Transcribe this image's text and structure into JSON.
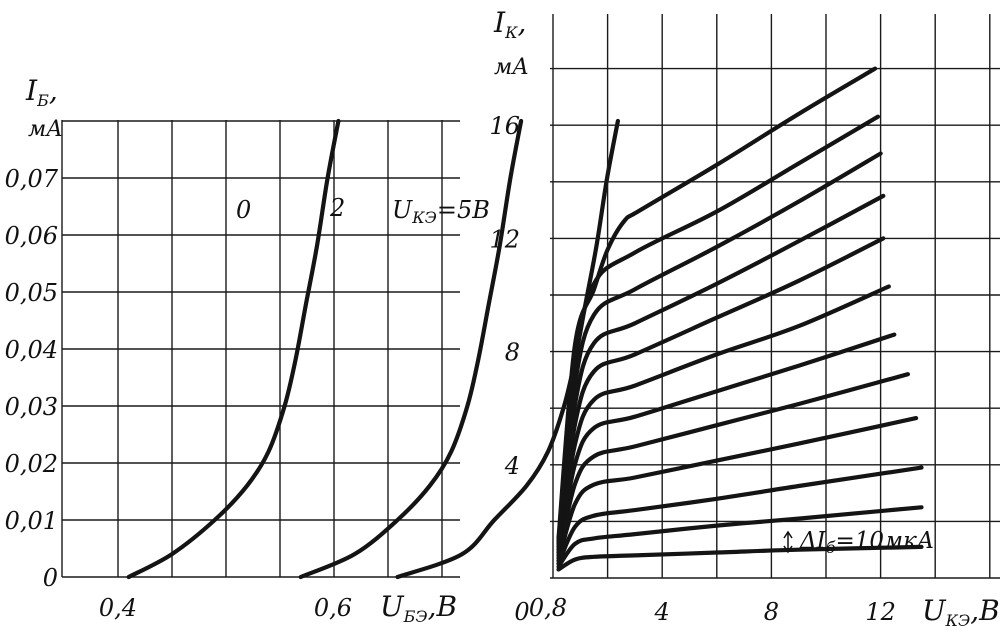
{
  "chart_data": [
    {
      "type": "line",
      "title": "",
      "ylabel_symbol": "I",
      "ylabel_sub": "Б",
      "ylabel_unit": "мА",
      "xlabel_symbol": "U",
      "xlabel_sub": "БЭ",
      "xlabel_unit": "В",
      "xlim": [
        0.3,
        0.97
      ],
      "ylim": [
        0,
        0.08
      ],
      "x_ticks": [
        {
          "v": 0.4,
          "label": "0,4"
        },
        {
          "v": 0.6,
          "label": "0,6"
        },
        {
          "v": 0.8,
          "label": "0,8"
        }
      ],
      "y_ticks": [
        {
          "v": 0,
          "label": "0"
        },
        {
          "v": 0.01,
          "label": "0,01"
        },
        {
          "v": 0.02,
          "label": "0,02"
        },
        {
          "v": 0.03,
          "label": "0,03"
        },
        {
          "v": 0.04,
          "label": "0,04"
        },
        {
          "v": 0.05,
          "label": "0,05"
        },
        {
          "v": 0.06,
          "label": "0,06"
        },
        {
          "v": 0.07,
          "label": "0,07"
        }
      ],
      "grid": true,
      "series": [
        {
          "name": "0",
          "x": [
            0.41,
            0.45,
            0.49,
            0.52,
            0.54,
            0.555,
            0.565,
            0.575,
            0.585,
            0.595,
            0.605
          ],
          "y": [
            0,
            0.004,
            0.01,
            0.016,
            0.022,
            0.03,
            0.038,
            0.048,
            0.058,
            0.07,
            0.08
          ]
        },
        {
          "name": "2",
          "x": [
            0.57,
            0.62,
            0.66,
            0.69,
            0.71,
            0.725,
            0.735,
            0.745,
            0.755,
            0.765,
            0.775
          ],
          "y": [
            0,
            0.004,
            0.01,
            0.016,
            0.022,
            0.03,
            0.038,
            0.048,
            0.058,
            0.07,
            0.08
          ]
        },
        {
          "name": "UКЭ=5В",
          "x": [
            0.66,
            0.72,
            0.75,
            0.78,
            0.8,
            0.815,
            0.825,
            0.835,
            0.845,
            0.855,
            0.865
          ],
          "y": [
            0,
            0.004,
            0.01,
            0.016,
            0.022,
            0.03,
            0.038,
            0.048,
            0.058,
            0.07,
            0.08
          ]
        }
      ],
      "series_labels": [
        {
          "text": "0"
        },
        {
          "text": "2"
        },
        {
          "sym": "U",
          "sub": "КЭ",
          "rest": "=5В"
        }
      ]
    },
    {
      "type": "line",
      "title": "",
      "ylabel_symbol": "I",
      "ylabel_sub": "К",
      "ylabel_unit": "мА",
      "xlabel_symbol": "U",
      "xlabel_sub": "КЭ",
      "xlabel_unit": "В",
      "xlim": [
        0,
        16
      ],
      "ylim": [
        0,
        18
      ],
      "x_ticks": [
        {
          "v": 0,
          "label": "0"
        },
        {
          "v": 4,
          "label": "4"
        },
        {
          "v": 8,
          "label": "8"
        },
        {
          "v": 12,
          "label": "12"
        }
      ],
      "y_ticks": [
        {
          "v": 4,
          "label": "4"
        },
        {
          "v": 8,
          "label": "8"
        },
        {
          "v": 12,
          "label": "12"
        },
        {
          "v": 16,
          "label": "16"
        }
      ],
      "grid": true,
      "annotation": "ΔIб=10мкА",
      "annotation_parts": {
        "prefix": "Δ",
        "sym": "I",
        "sub": "б",
        "rest": "=10мкА"
      },
      "series": [
        {
          "name": "",
          "x": [
            0.2,
            0.8,
            1.5,
            3,
            6,
            9,
            13.5
          ],
          "y": [
            0.3,
            0.65,
            0.75,
            0.8,
            0.9,
            1.0,
            1.1
          ]
        },
        {
          "name": "",
          "x": [
            0.2,
            0.8,
            1.5,
            3,
            6,
            9,
            13.5
          ],
          "y": [
            0.4,
            1.2,
            1.4,
            1.55,
            1.85,
            2.1,
            2.5
          ]
        },
        {
          "name": "",
          "x": [
            0.2,
            0.8,
            1.5,
            3,
            6,
            9,
            13.5
          ],
          "y": [
            0.5,
            1.8,
            2.2,
            2.4,
            2.8,
            3.25,
            3.9
          ]
        },
        {
          "name": "",
          "x": [
            0.2,
            0.8,
            1.5,
            3,
            6,
            9,
            13.3
          ],
          "y": [
            0.6,
            2.6,
            3.3,
            3.55,
            4.15,
            4.75,
            5.65
          ]
        },
        {
          "name": "",
          "x": [
            0.2,
            0.8,
            1.5,
            3,
            6,
            9,
            13
          ],
          "y": [
            0.7,
            3.3,
            4.3,
            4.65,
            5.4,
            6.15,
            7.2
          ]
        },
        {
          "name": "",
          "x": [
            0.2,
            0.8,
            1.5,
            3,
            6,
            9,
            12.5
          ],
          "y": [
            0.8,
            4.0,
            5.3,
            5.7,
            6.6,
            7.5,
            8.6
          ]
        },
        {
          "name": "",
          "x": [
            0.2,
            0.8,
            1.5,
            3,
            6,
            9,
            12.3
          ],
          "y": [
            0.9,
            4.7,
            6.3,
            6.8,
            7.9,
            8.9,
            10.3
          ]
        },
        {
          "name": "",
          "x": [
            0.2,
            0.8,
            1.5,
            3,
            6,
            9,
            12.1
          ],
          "y": [
            1.0,
            5.4,
            7.3,
            7.9,
            9.2,
            10.5,
            12.0
          ]
        },
        {
          "name": "",
          "x": [
            0.2,
            0.8,
            1.5,
            3,
            6,
            9,
            12.1
          ],
          "y": [
            1.1,
            6.1,
            8.3,
            9.0,
            10.4,
            11.9,
            13.5
          ]
        },
        {
          "name": "",
          "x": [
            0.2,
            0.8,
            1.5,
            3,
            6,
            9,
            12.0
          ],
          "y": [
            1.2,
            6.8,
            9.3,
            10.2,
            11.7,
            13.3,
            15.0
          ]
        },
        {
          "name": "",
          "x": [
            0.2,
            0.8,
            1.5,
            3,
            6,
            9,
            11.9
          ],
          "y": [
            1.3,
            7.5,
            10.4,
            11.5,
            12.95,
            14.65,
            16.3
          ]
        },
        {
          "name": "",
          "x": [
            0.2,
            0.8,
            1.5,
            2,
            2.6,
            3.2,
            6,
            9,
            11.8
          ],
          "y": [
            1.4,
            8.2,
            10.2,
            11.6,
            12.6,
            13.0,
            14.6,
            16.4,
            18.0
          ]
        }
      ]
    }
  ]
}
